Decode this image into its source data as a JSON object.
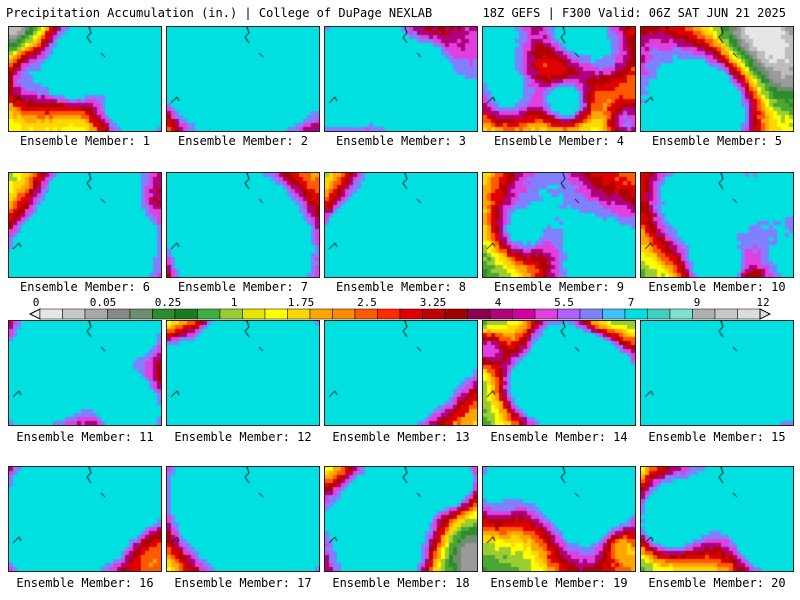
{
  "header": {
    "title": "Precipitation Accumulation (in.) | College of DuPage NEXLAB",
    "run_info": "18Z GEFS | F300 Valid: 06Z SAT JUN 21 2025"
  },
  "members": [
    {
      "label": "Ensemble Member: 1"
    },
    {
      "label": "Ensemble Member: 2"
    },
    {
      "label": "Ensemble Member: 3"
    },
    {
      "label": "Ensemble Member: 4"
    },
    {
      "label": "Ensemble Member: 5"
    },
    {
      "label": "Ensemble Member: 6"
    },
    {
      "label": "Ensemble Member: 7"
    },
    {
      "label": "Ensemble Member: 8"
    },
    {
      "label": "Ensemble Member: 9"
    },
    {
      "label": "Ensemble Member: 10"
    },
    {
      "label": "Ensemble Member: 11"
    },
    {
      "label": "Ensemble Member: 12"
    },
    {
      "label": "Ensemble Member: 13"
    },
    {
      "label": "Ensemble Member: 14"
    },
    {
      "label": "Ensemble Member: 15"
    },
    {
      "label": "Ensemble Member: 16"
    },
    {
      "label": "Ensemble Member: 17"
    },
    {
      "label": "Ensemble Member: 18"
    },
    {
      "label": "Ensemble Member: 19"
    },
    {
      "label": "Ensemble Member: 20"
    }
  ],
  "colorbar": {
    "tick_labels": [
      "0",
      "0.05",
      "0.25",
      "1",
      "1.75",
      "2.5",
      "3.25",
      "4",
      "5.5",
      "7",
      "9",
      "12"
    ],
    "colors": [
      "#e6e6e6",
      "#c8c8c8",
      "#a8a8a8",
      "#888888",
      "#6e8f6e",
      "#2e8b2e",
      "#1f7a1f",
      "#3cb043",
      "#9acd32",
      "#e6e600",
      "#ffff00",
      "#ffd700",
      "#ffa500",
      "#ff8c00",
      "#ff5a00",
      "#ff2a00",
      "#e00000",
      "#c00000",
      "#a00000",
      "#8b0050",
      "#b0007a",
      "#d000a0",
      "#e040e0",
      "#b060ff",
      "#8080ff",
      "#40c0ff",
      "#00e0e0",
      "#40d0c0",
      "#80e0d0",
      "#b0b0b0",
      "#c8c8c8",
      "#dcdcdc"
    ]
  }
}
